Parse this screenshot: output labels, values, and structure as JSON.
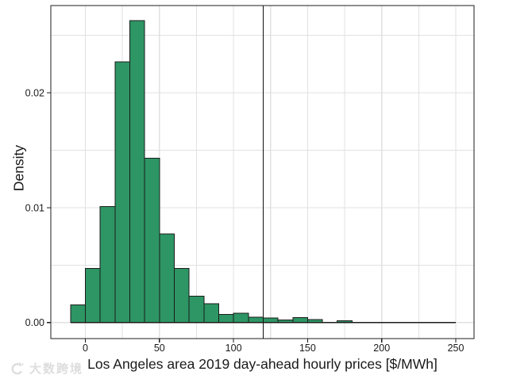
{
  "chart_data": {
    "type": "bar",
    "subtype": "histogram",
    "title": "",
    "xlabel": "Los Angeles area 2019 day-ahead hourly prices [$/MWh]",
    "ylabel": "Density",
    "bin_edges": [
      -10,
      0,
      10,
      20,
      30,
      40,
      50,
      60,
      70,
      80,
      90,
      100,
      110,
      120,
      130,
      140,
      150,
      160,
      170,
      180,
      190,
      200,
      210,
      220,
      230,
      240,
      250
    ],
    "densities": [
      0.00155,
      0.0047,
      0.0101,
      0.0227,
      0.0263,
      0.0143,
      0.0077,
      0.0047,
      0.0023,
      0.00165,
      0.0007,
      0.0008,
      0.00046,
      0.00038,
      0.00023,
      0.00042,
      0.00024,
      0,
      0.00014,
      0,
      0,
      0,
      0,
      0,
      0,
      0
    ],
    "reference_line_x": 120,
    "xlim": [
      -23.3,
      262.3
    ],
    "ylim": [
      -0.0014,
      0.0276
    ],
    "x_ticks": [
      {
        "v": 0,
        "label": "0"
      },
      {
        "v": 50,
        "label": "50"
      },
      {
        "v": 100,
        "label": "100"
      },
      {
        "v": 150,
        "label": "150"
      },
      {
        "v": 200,
        "label": "200"
      },
      {
        "v": 250,
        "label": "250"
      }
    ],
    "y_ticks": [
      {
        "v": 0,
        "label": "0.00"
      },
      {
        "v": 0.01,
        "label": "0.01"
      },
      {
        "v": 0.02,
        "label": "0.02"
      }
    ],
    "x_grid_step": 25,
    "y_grid_step": 0.005,
    "grid": true,
    "legend": "none",
    "colors": {
      "bar_fill": "#2d9664",
      "bar_edge": "#1c1c1c",
      "grid": "#e1e1e1",
      "axis": "#1c1c1c",
      "reference_line": "#111111",
      "tick_text": "#1a1a1a"
    }
  },
  "watermark": {
    "text": "大数跨境",
    "icon": "swirl-logo-icon"
  }
}
